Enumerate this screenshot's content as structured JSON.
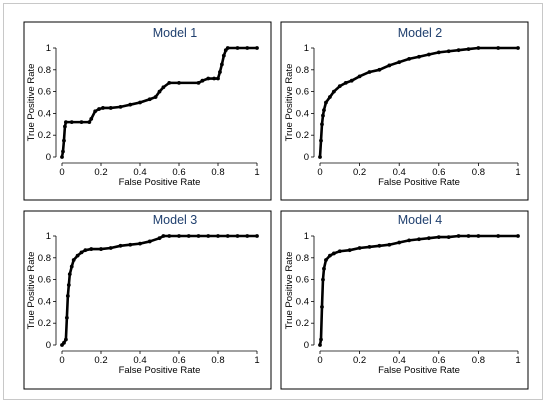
{
  "chart_data": [
    {
      "type": "line",
      "title": "Model 1",
      "xlabel": "False Positive Rate",
      "ylabel": "True Positive Rate",
      "xlim": [
        0,
        1
      ],
      "ylim": [
        0,
        1
      ],
      "xticks": [
        "0",
        "0.2",
        "0.4",
        "0.6",
        "0.8",
        "1"
      ],
      "yticks": [
        "0",
        "0.2",
        "0.4",
        "0.6",
        "0.8",
        "1"
      ],
      "grid": false,
      "series": [
        {
          "x": [
            0,
            0.005,
            0.01,
            0.015,
            0.02,
            0.05,
            0.1,
            0.14,
            0.15,
            0.17,
            0.19,
            0.21,
            0.25,
            0.3,
            0.35,
            0.4,
            0.45,
            0.48,
            0.5,
            0.52,
            0.55,
            0.6,
            0.7,
            0.72,
            0.75,
            0.78,
            0.8,
            0.81,
            0.82,
            0.83,
            0.84,
            0.85,
            0.9,
            0.95,
            1.0
          ],
          "y": [
            0,
            0.05,
            0.15,
            0.28,
            0.32,
            0.32,
            0.32,
            0.32,
            0.35,
            0.42,
            0.44,
            0.45,
            0.45,
            0.46,
            0.48,
            0.5,
            0.53,
            0.55,
            0.6,
            0.64,
            0.68,
            0.68,
            0.68,
            0.7,
            0.72,
            0.72,
            0.72,
            0.78,
            0.85,
            0.93,
            0.98,
            1.0,
            1.0,
            1.0,
            1.0
          ]
        }
      ]
    },
    {
      "type": "line",
      "title": "Model 2",
      "xlabel": "False Positive Rate",
      "ylabel": "True Positive Rate",
      "xlim": [
        0,
        1
      ],
      "ylim": [
        0,
        1
      ],
      "xticks": [
        "0",
        "0.2",
        "0.4",
        "0.6",
        "0.8",
        "1"
      ],
      "yticks": [
        "0",
        "0.2",
        "0.4",
        "0.6",
        "0.8",
        "1"
      ],
      "grid": false,
      "series": [
        {
          "x": [
            0,
            0.005,
            0.01,
            0.015,
            0.02,
            0.03,
            0.05,
            0.07,
            0.1,
            0.13,
            0.16,
            0.2,
            0.25,
            0.3,
            0.35,
            0.4,
            0.45,
            0.5,
            0.55,
            0.6,
            0.65,
            0.7,
            0.75,
            0.8,
            0.9,
            1.0
          ],
          "y": [
            0,
            0.15,
            0.3,
            0.38,
            0.43,
            0.5,
            0.55,
            0.6,
            0.65,
            0.68,
            0.7,
            0.74,
            0.78,
            0.8,
            0.84,
            0.87,
            0.9,
            0.92,
            0.94,
            0.96,
            0.97,
            0.98,
            0.99,
            1.0,
            1.0,
            1.0
          ]
        }
      ]
    },
    {
      "type": "line",
      "title": "Model 3",
      "xlabel": "False Positive Rate",
      "ylabel": "True Positive Rate",
      "xlim": [
        0,
        1
      ],
      "ylim": [
        0,
        1
      ],
      "xticks": [
        "0",
        "0.2",
        "0.4",
        "0.6",
        "0.8",
        "1"
      ],
      "yticks": [
        "0",
        "0.2",
        "0.4",
        "0.6",
        "0.8",
        "1"
      ],
      "grid": false,
      "series": [
        {
          "x": [
            0,
            0.01,
            0.02,
            0.025,
            0.03,
            0.035,
            0.04,
            0.05,
            0.06,
            0.08,
            0.1,
            0.12,
            0.15,
            0.2,
            0.25,
            0.3,
            0.35,
            0.4,
            0.45,
            0.5,
            0.52,
            0.55,
            0.6,
            0.65,
            0.7,
            0.75,
            0.8,
            0.85,
            0.9,
            0.95,
            1.0
          ],
          "y": [
            0,
            0.02,
            0.05,
            0.25,
            0.45,
            0.55,
            0.65,
            0.72,
            0.78,
            0.82,
            0.85,
            0.87,
            0.88,
            0.88,
            0.89,
            0.91,
            0.92,
            0.93,
            0.95,
            0.98,
            1.0,
            1.0,
            1.0,
            1.0,
            1.0,
            1.0,
            1.0,
            1.0,
            1.0,
            1.0,
            1.0
          ]
        }
      ]
    },
    {
      "type": "line",
      "title": "Model 4",
      "xlabel": "False Positive Rate",
      "ylabel": "True Positive Rate",
      "xlim": [
        0,
        1
      ],
      "ylim": [
        0,
        1
      ],
      "xticks": [
        "0",
        "0.2",
        "0.4",
        "0.6",
        "0.8",
        "1"
      ],
      "yticks": [
        "0",
        "0.2",
        "0.4",
        "0.6",
        "0.8",
        "1"
      ],
      "grid": false,
      "series": [
        {
          "x": [
            0,
            0.005,
            0.01,
            0.015,
            0.02,
            0.03,
            0.05,
            0.07,
            0.1,
            0.15,
            0.2,
            0.25,
            0.3,
            0.35,
            0.4,
            0.45,
            0.5,
            0.55,
            0.6,
            0.65,
            0.7,
            0.75,
            0.8,
            0.9,
            1.0
          ],
          "y": [
            0,
            0.05,
            0.35,
            0.6,
            0.7,
            0.78,
            0.82,
            0.84,
            0.86,
            0.87,
            0.89,
            0.9,
            0.91,
            0.92,
            0.94,
            0.96,
            0.97,
            0.98,
            0.99,
            0.99,
            1.0,
            1.0,
            1.0,
            1.0,
            1.0
          ]
        }
      ]
    }
  ]
}
